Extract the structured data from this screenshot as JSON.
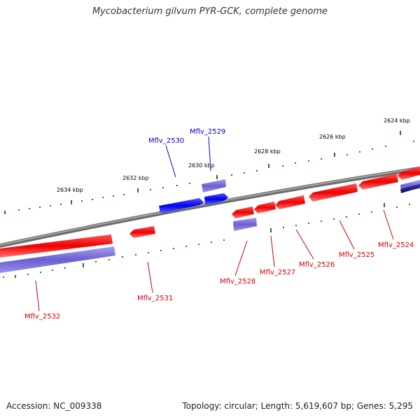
{
  "title": "Mycobacterium gilvum PYR-GCK, complete genome",
  "footer": {
    "accession": "Accession: NC_009338",
    "topology": "Topology: circular; Length: 5,619,607 bp; Genes: 5,295"
  },
  "scale_labels": [
    "2624 kbp",
    "2626 kbp",
    "2628 kbp",
    "2630 kbp",
    "2632 kbp",
    "2634 kbp"
  ],
  "genes": [
    {
      "id": "Mflv_2524",
      "strand": "reverse"
    },
    {
      "id": "Mflv_2525",
      "strand": "reverse"
    },
    {
      "id": "Mflv_2526",
      "strand": "reverse"
    },
    {
      "id": "Mflv_2527",
      "strand": "reverse"
    },
    {
      "id": "Mflv_2528",
      "strand": "reverse"
    },
    {
      "id": "Mflv_2529",
      "strand": "forward"
    },
    {
      "id": "Mflv_2530",
      "strand": "forward"
    },
    {
      "id": "Mflv_2531",
      "strand": "reverse"
    },
    {
      "id": "Mflv_2532",
      "strand": "reverse"
    }
  ],
  "colors": {
    "forward_gene": "#0000ee",
    "forward_cds": "#7b70d8",
    "reverse_gene": "#ee0000",
    "reverse_cds": "#7b70d8",
    "backbone": "#888888",
    "tick": "#1a7a1a",
    "forward_label": "#0000cc",
    "reverse_label": "#cc0000"
  }
}
